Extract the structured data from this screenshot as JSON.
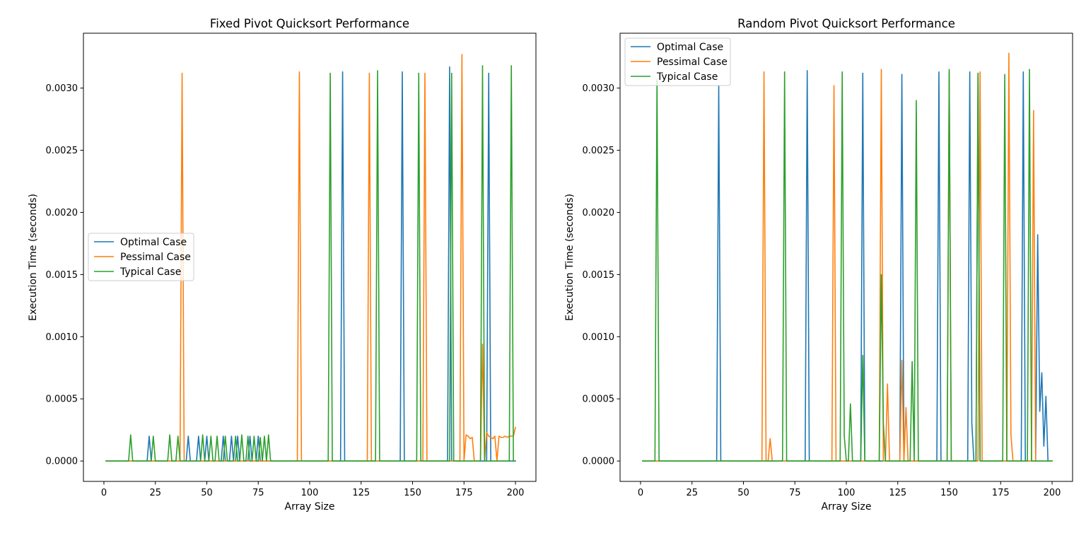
{
  "chart_data": [
    {
      "type": "line",
      "title": "Fixed Pivot Quicksort Performance",
      "xlabel": "Array Size",
      "ylabel": "Execution Time (seconds)",
      "xlim": [
        -9.95,
        209.95
      ],
      "ylim": [
        -0.000164,
        0.0034412
      ],
      "xticks": [
        0,
        25,
        50,
        75,
        100,
        125,
        150,
        175,
        200
      ],
      "yticks": [
        0.0,
        0.0005,
        0.001,
        0.0015,
        0.002,
        0.0025,
        0.003
      ],
      "ytick_labels": [
        "0.0000",
        "0.0005",
        "0.0010",
        "0.0015",
        "0.0020",
        "0.0025",
        "0.0030"
      ],
      "grid": false,
      "legend": "center-left",
      "x_start": 1,
      "series": [
        {
          "name": "Optimal Case",
          "color": "#1f77b4",
          "sparse": [
            [
              22,
              0.0002
            ],
            [
              26,
              0
            ],
            [
              41,
              0.0002
            ],
            [
              46,
              0.0002
            ],
            [
              50,
              0.0002
            ],
            [
              58,
              0.0002
            ],
            [
              60,
              0
            ],
            [
              62,
              0.0002
            ],
            [
              65,
              0.0002
            ],
            [
              71,
              0.0002
            ],
            [
              75,
              0.0002
            ],
            [
              116,
              0.00313
            ],
            [
              145,
              0.00313
            ],
            [
              168,
              0.00317
            ],
            [
              170,
              0
            ],
            [
              171,
              0
            ],
            [
              187,
              0.00312
            ]
          ]
        },
        {
          "name": "Pessimal Case",
          "color": "#ff7f0e",
          "sparse": [
            [
              38,
              0.00312
            ],
            [
              95,
              0.00313
            ],
            [
              129,
              0.00312
            ],
            [
              156,
              0.00312
            ],
            [
              174,
              0.00327
            ],
            [
              176,
              0.00021
            ],
            [
              177,
              0.0002
            ],
            [
              178,
              0.00018
            ],
            [
              179,
              0.00019
            ],
            [
              184,
              0.00094
            ],
            [
              186,
              0.00023
            ],
            [
              187,
              0.0002
            ],
            [
              188,
              0.00019
            ],
            [
              189,
              0.00018
            ],
            [
              190,
              0.0002
            ],
            [
              191,
              0
            ],
            [
              192,
              0.0002
            ],
            [
              193,
              0.00019
            ],
            [
              194,
              0.00019
            ],
            [
              195,
              0.0002
            ],
            [
              196,
              0.00019
            ],
            [
              197,
              0.0002
            ],
            [
              198,
              0.0002
            ],
            [
              199,
              0.0002
            ],
            [
              200,
              0.00027
            ]
          ]
        },
        {
          "name": "Typical Case",
          "color": "#2ca02c",
          "sparse": [
            [
              13,
              0.00021
            ],
            [
              24,
              0.0002
            ],
            [
              32,
              0.00021
            ],
            [
              36,
              0.0002
            ],
            [
              48,
              0.00021
            ],
            [
              52,
              0.0002
            ],
            [
              55,
              0.0002
            ],
            [
              59,
              0.0002
            ],
            [
              64,
              0.0002
            ],
            [
              67,
              0.00021
            ],
            [
              70,
              0.0002
            ],
            [
              73,
              0.0002
            ],
            [
              76,
              0.00019
            ],
            [
              78,
              0.0002
            ],
            [
              80,
              0.00021
            ],
            [
              110,
              0.00312
            ],
            [
              133,
              0.00314
            ],
            [
              153,
              0.00312
            ],
            [
              169,
              0.00312
            ],
            [
              184,
              0.00318
            ],
            [
              198,
              0.00318
            ]
          ]
        }
      ]
    },
    {
      "type": "line",
      "title": "Random Pivot Quicksort Performance",
      "xlabel": "Array Size",
      "ylabel": "Execution Time (seconds)",
      "xlim": [
        -9.95,
        209.95
      ],
      "ylim": [
        -0.000164,
        0.0034412
      ],
      "xticks": [
        0,
        25,
        50,
        75,
        100,
        125,
        150,
        175,
        200
      ],
      "yticks": [
        0.0,
        0.0005,
        0.001,
        0.0015,
        0.002,
        0.0025,
        0.003
      ],
      "ytick_labels": [
        "0.0000",
        "0.0005",
        "0.0010",
        "0.0015",
        "0.0020",
        "0.0025",
        "0.0030"
      ],
      "grid": false,
      "legend": "upper-left",
      "x_start": 1,
      "series": [
        {
          "name": "Optimal Case",
          "color": "#1f77b4",
          "sparse": [
            [
              38,
              0.00302
            ],
            [
              81,
              0.00314
            ],
            [
              108,
              0.00312
            ],
            [
              127,
              0.00311
            ],
            [
              145,
              0.00313
            ],
            [
              160,
              0.00313
            ],
            [
              161,
              0.0003
            ],
            [
              164,
              0.00312
            ],
            [
              186,
              0.00313
            ],
            [
              193,
              0.00182
            ],
            [
              194,
              0.0004
            ],
            [
              195,
              0.00071
            ],
            [
              196,
              0.00012
            ],
            [
              197,
              0.00052
            ]
          ]
        },
        {
          "name": "Pessimal Case",
          "color": "#ff7f0e",
          "sparse": [
            [
              60,
              0.00313
            ],
            [
              63,
              0.00018
            ],
            [
              94,
              0.00302
            ],
            [
              117,
              0.00315
            ],
            [
              120,
              0.00062
            ],
            [
              127,
              0.00081
            ],
            [
              129,
              0.00043
            ],
            [
              150,
              0.00313
            ],
            [
              165,
              0.00313
            ],
            [
              179,
              0.00328
            ],
            [
              180,
              0.00021
            ],
            [
              191,
              0.00282
            ]
          ]
        },
        {
          "name": "Typical Case",
          "color": "#2ca02c",
          "sparse": [
            [
              8,
              0.00307
            ],
            [
              70,
              0.00313
            ],
            [
              98,
              0.00313
            ],
            [
              99,
              0.0002
            ],
            [
              102,
              0.00046
            ],
            [
              108,
              0.00085
            ],
            [
              117,
              0.0015
            ],
            [
              118,
              0.0003
            ],
            [
              132,
              0.0008
            ],
            [
              134,
              0.0029
            ],
            [
              150,
              0.00315
            ],
            [
              164,
              0.00312
            ],
            [
              177,
              0.00311
            ],
            [
              189,
              0.00315
            ]
          ]
        }
      ]
    }
  ]
}
